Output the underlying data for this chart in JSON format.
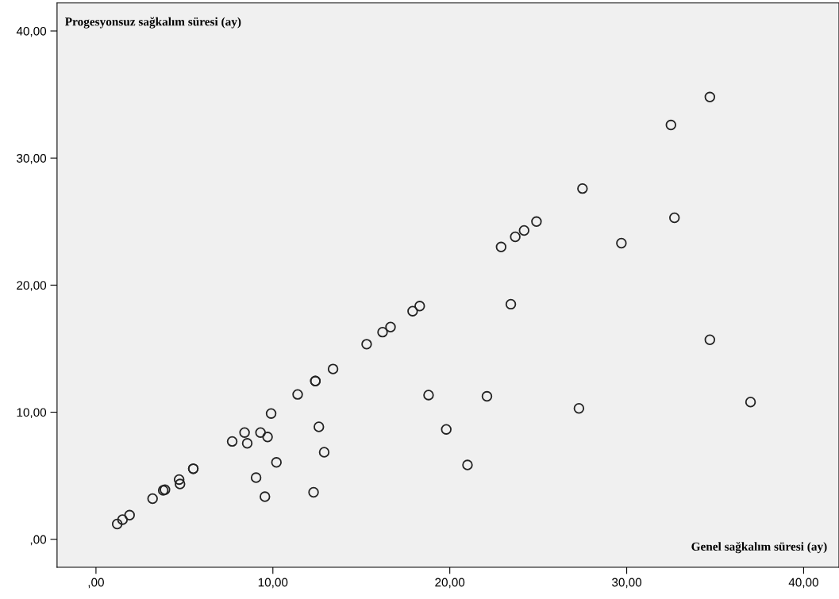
{
  "chart_data": {
    "type": "scatter",
    "xlabel": "Genel sağkalım süresi (ay)",
    "ylabel": "Progesyonsuz sağkalım süresi (ay)",
    "xlim": [
      -2.2,
      42
    ],
    "ylim": [
      -2.2,
      42.2
    ],
    "xticks": [
      {
        "value": 0,
        "label": ",00"
      },
      {
        "value": 10,
        "label": "10,00"
      },
      {
        "value": 20,
        "label": "20,00"
      },
      {
        "value": 30,
        "label": "30,00"
      },
      {
        "value": 40,
        "label": "40,00"
      }
    ],
    "yticks": [
      {
        "value": 0,
        "label": ",00"
      },
      {
        "value": 10,
        "label": "10,00"
      },
      {
        "value": 20,
        "label": "20,00"
      },
      {
        "value": 30,
        "label": "30,00"
      },
      {
        "value": 40,
        "label": "40,00"
      }
    ],
    "marker": "circle",
    "series": [
      {
        "color": "#222222",
        "x": [
          1.2,
          1.5,
          1.9,
          3.2,
          3.8,
          3.9,
          4.7,
          4.75,
          5.5,
          5.5,
          7.7,
          8.4,
          8.55,
          9.3,
          9.7,
          10.2,
          9.05,
          9.55,
          12.3,
          12.9,
          12.6,
          9.9,
          11.4,
          12.4,
          12.4,
          13.4,
          15.3,
          16.2,
          16.65,
          17.9,
          18.3,
          18.8,
          22.1,
          19.8,
          21.0,
          23.45,
          34.7,
          32.5,
          27.5,
          32.7,
          29.7,
          24.9,
          24.2,
          23.7,
          22.9,
          34.7,
          37.0,
          27.3
        ],
        "values": [
          1.2,
          1.55,
          1.9,
          3.2,
          3.85,
          3.9,
          4.7,
          4.35,
          5.55,
          5.55,
          7.7,
          8.4,
          7.55,
          8.4,
          8.05,
          6.05,
          4.85,
          3.35,
          3.7,
          6.85,
          8.85,
          9.9,
          11.4,
          12.45,
          12.45,
          13.4,
          15.35,
          16.3,
          16.7,
          17.95,
          18.35,
          11.35,
          11.25,
          8.65,
          5.85,
          18.5,
          34.8,
          32.6,
          27.6,
          25.3,
          23.3,
          25.0,
          24.3,
          23.8,
          23.0,
          15.7,
          10.8,
          10.3
        ]
      }
    ]
  }
}
